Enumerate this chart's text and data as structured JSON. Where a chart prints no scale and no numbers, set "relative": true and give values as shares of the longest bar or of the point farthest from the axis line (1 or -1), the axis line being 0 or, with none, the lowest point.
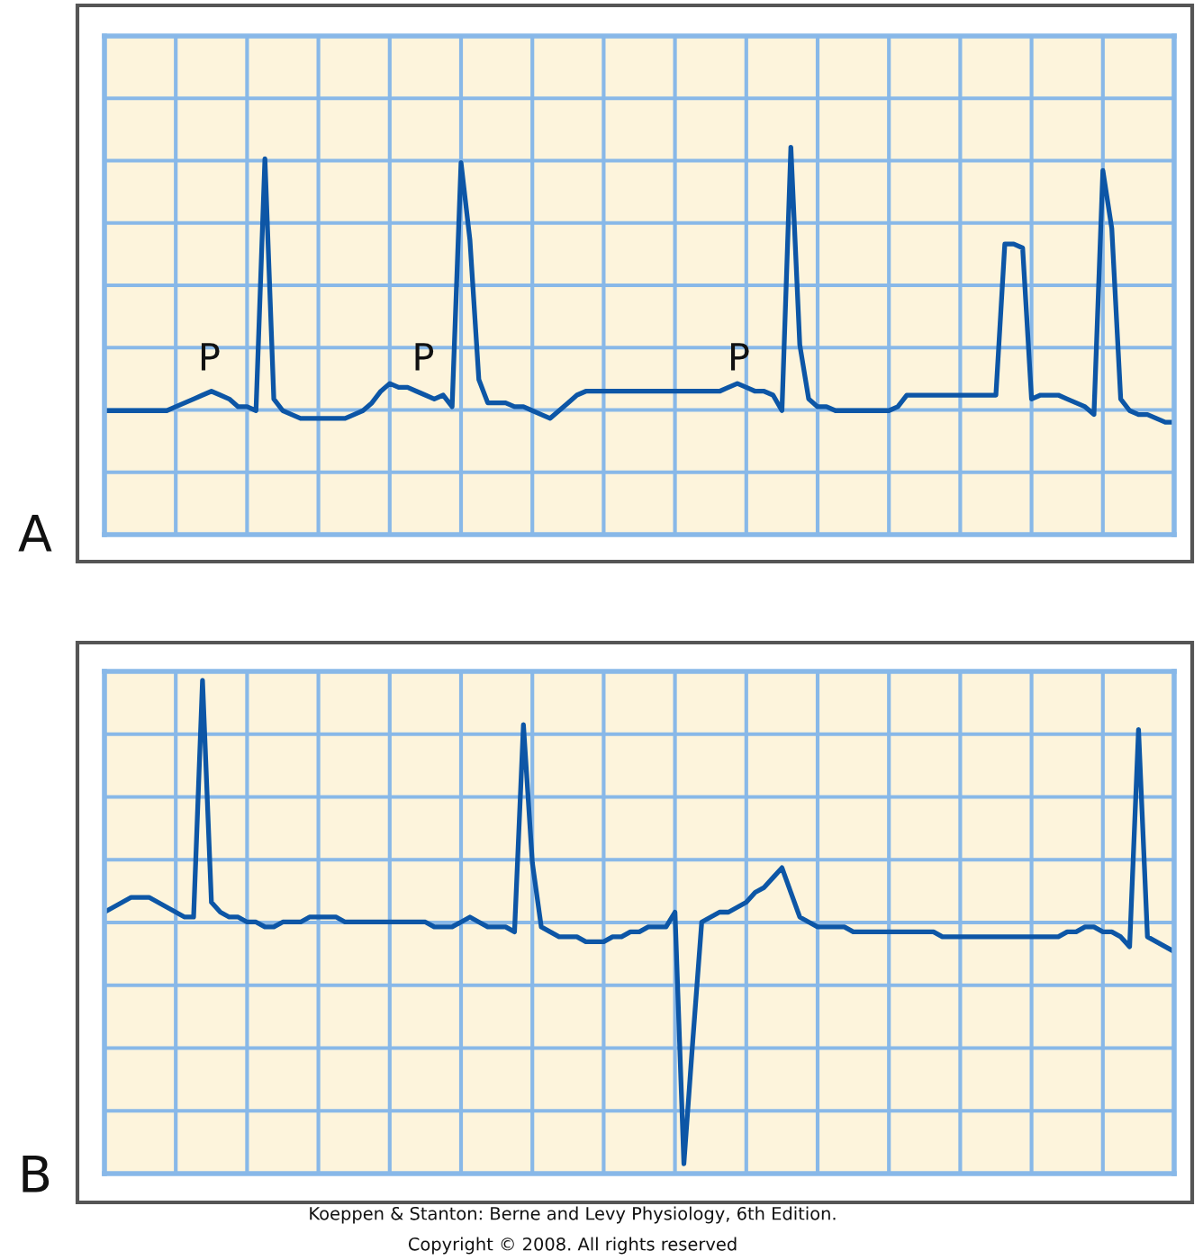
{
  "chart_data": [
    {
      "type": "line",
      "title": "A",
      "relative": true,
      "grid": true,
      "categories": [
        null,
        null,
        null,
        null,
        null,
        null,
        null,
        null,
        null,
        null,
        null,
        null,
        null,
        null,
        null,
        null,
        null,
        null,
        null,
        null,
        null,
        null,
        null,
        null,
        null,
        null,
        null,
        null,
        null,
        null,
        null,
        null,
        null,
        null,
        null,
        null,
        null,
        null,
        null,
        null,
        null,
        null,
        null,
        null,
        null,
        null,
        null,
        null,
        null,
        null,
        null,
        null,
        null,
        null,
        null,
        null,
        null,
        null,
        null,
        null,
        null,
        null,
        null,
        null,
        null,
        null,
        null,
        null,
        null,
        null,
        null,
        null,
        null,
        null,
        null,
        null,
        null,
        null,
        null,
        null,
        null,
        null,
        null,
        null,
        null,
        null,
        null,
        null,
        null,
        null,
        null,
        null,
        null,
        null,
        null,
        null,
        null,
        null,
        null,
        null,
        null,
        null,
        null,
        null,
        null,
        null,
        null,
        null,
        null,
        null,
        null,
        null,
        null,
        null,
        null,
        null,
        null,
        null,
        null,
        null,
        null
      ],
      "series": [
        {
          "color": "#0d56a6",
          "values": [
            0.32,
            0.32,
            0.32,
            0.32,
            0.32,
            0.32,
            0.32,
            0.32,
            0.33,
            0.34,
            0.35,
            0.36,
            0.37,
            0.36,
            0.35,
            0.33,
            0.33,
            0.32,
            0.97,
            0.35,
            0.32,
            0.31,
            0.3,
            0.3,
            0.3,
            0.3,
            0.3,
            0.3,
            0.31,
            0.32,
            0.34,
            0.37,
            0.39,
            0.38,
            0.38,
            0.37,
            0.36,
            0.35,
            0.36,
            0.33,
            0.96,
            0.76,
            0.4,
            0.34,
            0.34,
            0.34,
            0.33,
            0.33,
            0.32,
            0.31,
            0.3,
            0.32,
            0.34,
            0.36,
            0.37,
            0.37,
            0.37,
            0.37,
            0.37,
            0.37,
            0.37,
            0.37,
            0.37,
            0.37,
            0.37,
            0.37,
            0.37,
            0.37,
            0.37,
            0.37,
            0.38,
            0.39,
            0.38,
            0.37,
            0.37,
            0.36,
            0.32,
            1.0,
            0.49,
            0.35,
            0.33,
            0.33,
            0.32,
            0.32,
            0.32,
            0.32,
            0.32,
            0.32,
            0.32,
            0.33,
            0.36,
            0.36,
            0.36,
            0.36,
            0.36,
            0.36,
            0.36,
            0.36,
            0.36,
            0.36,
            0.36,
            0.75,
            0.75,
            0.74,
            0.35,
            0.36,
            0.36,
            0.36,
            0.35,
            0.34,
            0.33,
            0.31,
            0.94,
            0.79,
            0.35,
            0.32,
            0.31,
            0.31,
            0.3,
            0.29,
            0.29
          ]
        }
      ],
      "annotations": [
        "P",
        "P",
        "P"
      ]
    },
    {
      "type": "line",
      "title": "B",
      "relative": true,
      "grid": true,
      "categories": [
        null,
        null,
        null,
        null,
        null,
        null,
        null,
        null,
        null,
        null,
        null,
        null,
        null,
        null,
        null,
        null,
        null,
        null,
        null,
        null,
        null,
        null,
        null,
        null,
        null,
        null,
        null,
        null,
        null,
        null,
        null,
        null,
        null,
        null,
        null,
        null,
        null,
        null,
        null,
        null,
        null,
        null,
        null,
        null,
        null,
        null,
        null,
        null,
        null,
        null,
        null,
        null,
        null,
        null,
        null,
        null,
        null,
        null,
        null,
        null,
        null,
        null,
        null,
        null,
        null,
        null,
        null,
        null,
        null,
        null,
        null,
        null,
        null,
        null,
        null,
        null,
        null,
        null,
        null,
        null,
        null,
        null,
        null,
        null,
        null,
        null,
        null,
        null,
        null,
        null,
        null,
        null,
        null,
        null,
        null,
        null,
        null,
        null,
        null,
        null,
        null,
        null,
        null,
        null,
        null,
        null,
        null,
        null,
        null,
        null,
        null,
        null,
        null,
        null,
        null,
        null,
        null,
        null,
        null,
        null,
        null
      ],
      "series": [
        {
          "color": "#0d56a6",
          "values": [
            0.53,
            0.54,
            0.55,
            0.56,
            0.56,
            0.56,
            0.55,
            0.54,
            0.53,
            0.52,
            0.52,
            1.0,
            0.55,
            0.53,
            0.52,
            0.52,
            0.51,
            0.51,
            0.5,
            0.5,
            0.51,
            0.51,
            0.51,
            0.52,
            0.52,
            0.52,
            0.52,
            0.51,
            0.51,
            0.51,
            0.51,
            0.51,
            0.51,
            0.51,
            0.51,
            0.51,
            0.51,
            0.5,
            0.5,
            0.5,
            0.51,
            0.52,
            0.51,
            0.5,
            0.5,
            0.5,
            0.49,
            0.91,
            0.63,
            0.5,
            0.49,
            0.48,
            0.48,
            0.48,
            0.47,
            0.47,
            0.47,
            0.48,
            0.48,
            0.49,
            0.49,
            0.5,
            0.5,
            0.5,
            0.53,
            0.02,
            0.27,
            0.51,
            0.52,
            0.53,
            0.53,
            0.54,
            0.55,
            0.57,
            0.58,
            0.6,
            0.62,
            0.57,
            0.52,
            0.51,
            0.5,
            0.5,
            0.5,
            0.5,
            0.49,
            0.49,
            0.49,
            0.49,
            0.49,
            0.49,
            0.49,
            0.49,
            0.49,
            0.49,
            0.48,
            0.48,
            0.48,
            0.48,
            0.48,
            0.48,
            0.48,
            0.48,
            0.48,
            0.48,
            0.48,
            0.48,
            0.48,
            0.48,
            0.49,
            0.49,
            0.5,
            0.5,
            0.49,
            0.49,
            0.48,
            0.46,
            0.9,
            0.48,
            0.47,
            0.46,
            0.45
          ]
        }
      ],
      "annotations": [
        "Koeppen & Stanton: Berne and Levy Physiology, 6th Edition.",
        "Copyright © 2008. All rights reserved"
      ]
    }
  ]
}
